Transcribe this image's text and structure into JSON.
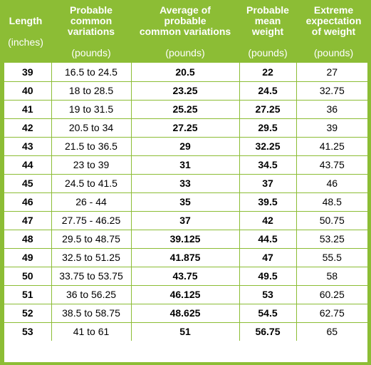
{
  "table": {
    "headers": [
      {
        "title": "Length",
        "unit": "(inches)"
      },
      {
        "title": "Probable\ncommon\nvariations",
        "unit": "(pounds)"
      },
      {
        "title": "Average of\nprobable\ncommon variations",
        "unit": "(pounds)"
      },
      {
        "title": "Probable\nmean\nweight",
        "unit": "(pounds)"
      },
      {
        "title": "Extreme\nexpectation\nof weight",
        "unit": "(pounds)"
      }
    ],
    "rows": [
      {
        "length": "39",
        "variations": "16.5 to 24.5",
        "average": "20.5",
        "mean": "22",
        "extreme": "27"
      },
      {
        "length": "40",
        "variations": "18 to 28.5",
        "average": "23.25",
        "mean": "24.5",
        "extreme": "32.75"
      },
      {
        "length": "41",
        "variations": "19 to 31.5",
        "average": "25.25",
        "mean": "27.25",
        "extreme": "36"
      },
      {
        "length": "42",
        "variations": "20.5 to 34",
        "average": "27.25",
        "mean": "29.5",
        "extreme": "39"
      },
      {
        "length": "43",
        "variations": "21.5 to 36.5",
        "average": "29",
        "mean": "32.25",
        "extreme": "41.25"
      },
      {
        "length": "44",
        "variations": "23 to 39",
        "average": "31",
        "mean": "34.5",
        "extreme": "43.75"
      },
      {
        "length": "45",
        "variations": "24.5 to 41.5",
        "average": "33",
        "mean": "37",
        "extreme": "46"
      },
      {
        "length": "46",
        "variations": "26 - 44",
        "average": "35",
        "mean": "39.5",
        "extreme": "48.5"
      },
      {
        "length": "47",
        "variations": "27.75 - 46.25",
        "average": "37",
        "mean": "42",
        "extreme": "50.75"
      },
      {
        "length": "48",
        "variations": "29.5 to 48.75",
        "average": "39.125",
        "mean": "44.5",
        "extreme": "53.25"
      },
      {
        "length": "49",
        "variations": "32.5 to 51.25",
        "average": "41.875",
        "mean": "47",
        "extreme": "55.5"
      },
      {
        "length": "50",
        "variations": "33.75 to 53.75",
        "average": "43.75",
        "mean": "49.5",
        "extreme": "58"
      },
      {
        "length": "51",
        "variations": "36 to 56.25",
        "average": "46.125",
        "mean": "53",
        "extreme": "60.25"
      },
      {
        "length": "52",
        "variations": "38.5 to 58.75",
        "average": "48.625",
        "mean": "54.5",
        "extreme": "62.75"
      },
      {
        "length": "53",
        "variations": "41 to 61",
        "average": "51",
        "mean": "56.75",
        "extreme": "65"
      }
    ]
  },
  "colors": {
    "header_bg": "#8cbd35",
    "header_text": "#ffffff",
    "grid": "#8cbd35",
    "cell_bg": "#ffffff"
  }
}
